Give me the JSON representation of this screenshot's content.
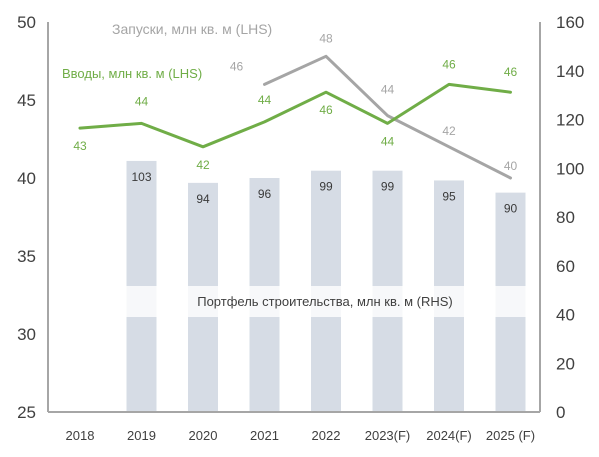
{
  "chart_data": {
    "type": "bar+line",
    "categories": [
      "2018",
      "2019",
      "2020",
      "2021",
      "2022",
      "2023(F)",
      "2024(F)",
      "2025 (F)"
    ],
    "left_axis": {
      "min": 25,
      "max": 50,
      "ticks": [
        25,
        30,
        35,
        40,
        45,
        50
      ]
    },
    "right_axis": {
      "min": 0,
      "max": 160,
      "ticks": [
        0,
        20,
        40,
        60,
        80,
        100,
        120,
        140,
        160
      ]
    },
    "series": [
      {
        "name": "Портфель строительства, млн кв. м (RHS)",
        "kind": "bar",
        "axis": "right",
        "color": "#d6dce5",
        "values": [
          null,
          103,
          94,
          96,
          99,
          99,
          95,
          90
        ]
      },
      {
        "name": "Вводы, млн кв. м (LHS)",
        "kind": "line",
        "axis": "left",
        "color": "#70ad47",
        "values": [
          43,
          44,
          42,
          44,
          46,
          44,
          46,
          46
        ],
        "display_values": [
          43.2,
          43.5,
          42.0,
          43.6,
          45.5,
          43.5,
          46.0,
          45.5
        ]
      },
      {
        "name": "Запуски, млн кв. м (LHS)",
        "kind": "line",
        "axis": "left",
        "color": "#a5a5a5",
        "values": [
          null,
          null,
          null,
          46,
          48,
          44,
          42,
          40
        ],
        "display_values": [
          null,
          null,
          null,
          46.0,
          47.8,
          44.0,
          42.0,
          40.0
        ]
      }
    ],
    "legend_placement": "inline-labels",
    "grid": false
  },
  "colors": {
    "bar": "#d6dce5",
    "bar_label": "#3a3a3a",
    "green": "#70ad47",
    "gray": "#a5a5a5",
    "axis": "#a6a6a6",
    "tick_text": "#404040",
    "band": "#ffffff"
  }
}
